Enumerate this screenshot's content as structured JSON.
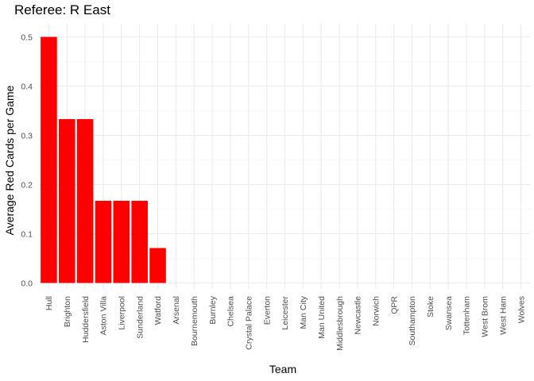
{
  "chart_data": {
    "type": "bar",
    "title": "Referee: R East",
    "xlabel": "Team",
    "ylabel": "Average Red Cards per Game",
    "categories": [
      "Hull",
      "Brighton",
      "Huddersfield",
      "Aston Villa",
      "Liverpool",
      "Sunderland",
      "Watford",
      "Arsenal",
      "Bournemouth",
      "Burnley",
      "Chelsea",
      "Crystal Palace",
      "Everton",
      "Leicester",
      "Man City",
      "Man United",
      "Middlesbrough",
      "Newcastle",
      "Norwich",
      "QPR",
      "Southampton",
      "Stoke",
      "Swansea",
      "Tottenham",
      "West Brom",
      "West Ham",
      "Wolves"
    ],
    "values": [
      0.5,
      0.333,
      0.333,
      0.167,
      0.167,
      0.167,
      0.071,
      0,
      0,
      0,
      0,
      0,
      0,
      0,
      0,
      0,
      0,
      0,
      0,
      0,
      0,
      0,
      0,
      0,
      0,
      0,
      0
    ],
    "ylim": [
      0,
      0.5
    ],
    "yticks": [
      "0.0",
      "0.1",
      "0.2",
      "0.3",
      "0.4",
      "0.5"
    ],
    "bar_color": "#ff0000",
    "grid": true,
    "legend": "none"
  }
}
